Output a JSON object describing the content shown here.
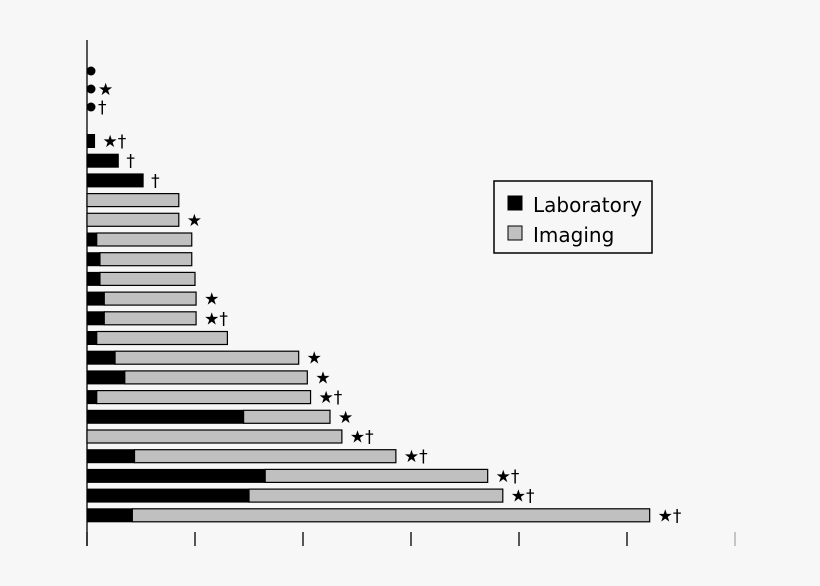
{
  "chart_data": {
    "type": "bar",
    "orientation": "horizontal",
    "stacked": true,
    "grid": false,
    "legend_position": "top-right",
    "xlim": [
      0,
      60
    ],
    "x_ticks": [
      0,
      10,
      20,
      30,
      40,
      50,
      60
    ],
    "series": [
      {
        "name": "Laboratory",
        "color": "#000000",
        "values": [
          0,
          0,
          0,
          0.7,
          2.9,
          5.2,
          0,
          0,
          0.9,
          1.2,
          1.2,
          1.6,
          1.6,
          0.9,
          2.6,
          3.5,
          0.9,
          14.5,
          0,
          4.4,
          16.5,
          15,
          4.2
        ]
      },
      {
        "name": "Imaging",
        "color": "#c0c0c0",
        "values": [
          0,
          0,
          0,
          0,
          0,
          0,
          8.5,
          8.5,
          8.8,
          8.5,
          8.8,
          8.5,
          8.5,
          12.1,
          17,
          16.9,
          19.8,
          8,
          23.6,
          24.2,
          20.6,
          23.5,
          47.9
        ]
      }
    ],
    "annotations": [
      "",
      "★",
      "†",
      "★†",
      "†",
      "†",
      "",
      "★",
      "",
      "",
      "",
      "★",
      "★†",
      "",
      "★",
      "★",
      "★†",
      "★",
      "★†",
      "★†",
      "★†",
      "★†",
      "★†"
    ],
    "dot_rows": [
      0,
      1,
      2
    ],
    "legend": {
      "laboratory_label": "Laboratory",
      "imaging_label": "Imaging"
    }
  }
}
